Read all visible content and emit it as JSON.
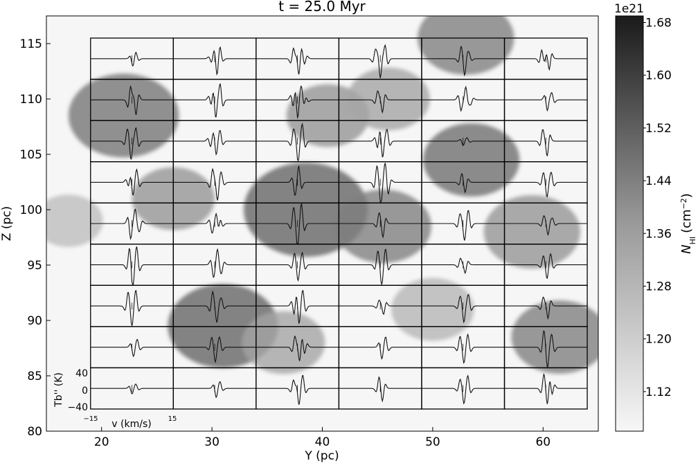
{
  "chart_data": [
    {
      "type": "heatmap",
      "title": "t = 25.0 Myr",
      "xlabel": "Y (pc)",
      "ylabel": "Z (pc)",
      "xlim": [
        15,
        65
      ],
      "ylim": [
        80,
        117.5
      ],
      "xticks": [
        "20",
        "30",
        "40",
        "50",
        "60"
      ],
      "xtick_values": [
        20,
        30,
        40,
        50,
        60
      ],
      "yticks": [
        "80",
        "85",
        "90",
        "95",
        "100",
        "105",
        "110",
        "115"
      ],
      "ytick_values": [
        80,
        85,
        90,
        95,
        100,
        105,
        110,
        115
      ],
      "colormap": "gray_r",
      "colorbar": {
        "label": "N_HI (cm^-2)",
        "label_main": "N",
        "label_sub": "HI",
        "label_units": "(cm",
        "label_exp": "−2",
        "label_close": ")",
        "scale_label": "1e21",
        "ticks": [
          "1.12",
          "1.20",
          "1.28",
          "1.36",
          "1.44",
          "1.52",
          "1.60",
          "1.68"
        ],
        "tick_values": [
          1.12,
          1.2,
          1.28,
          1.36,
          1.44,
          1.52,
          1.6,
          1.68
        ],
        "range": [
          1.06,
          1.69
        ]
      },
      "blobs": [
        {
          "y": 22.0,
          "z": 108.5,
          "r": 4.0,
          "v": 0.75
        },
        {
          "y": 26.5,
          "z": 101.0,
          "r": 3.0,
          "v": 0.55
        },
        {
          "y": 31.0,
          "z": 89.5,
          "r": 4.0,
          "v": 0.85
        },
        {
          "y": 38.5,
          "z": 100.0,
          "r": 4.5,
          "v": 0.85
        },
        {
          "y": 40.5,
          "z": 108.5,
          "r": 3.0,
          "v": 0.55
        },
        {
          "y": 45.5,
          "z": 98.5,
          "r": 3.5,
          "v": 0.7
        },
        {
          "y": 53.5,
          "z": 104.5,
          "r": 3.5,
          "v": 0.8
        },
        {
          "y": 53.0,
          "z": 115.5,
          "r": 3.5,
          "v": 0.7
        },
        {
          "y": 61.5,
          "z": 88.5,
          "r": 3.5,
          "v": 0.7
        },
        {
          "y": 59.0,
          "z": 98.0,
          "r": 3.5,
          "v": 0.55
        },
        {
          "y": 36.5,
          "z": 88.0,
          "r": 3.0,
          "v": 0.45
        },
        {
          "y": 17.0,
          "z": 99.0,
          "r": 2.5,
          "v": 0.3
        },
        {
          "y": 46.0,
          "z": 110.0,
          "r": 3.0,
          "v": 0.45
        },
        {
          "y": 50.0,
          "z": 91.0,
          "r": 3.0,
          "v": 0.35
        }
      ]
    },
    {
      "type": "line",
      "title": "",
      "xlabel": "v (km/s)",
      "ylabel": "Tb'' (K)",
      "xlim": [
        -15,
        15
      ],
      "ylim": [
        -50,
        50
      ],
      "xticks": [
        "−15",
        "15"
      ],
      "yticks": [
        "40",
        "0",
        "−40"
      ],
      "ytick_values": [
        40,
        0,
        -40
      ],
      "grid": {
        "rows": 9,
        "cols": 6
      },
      "panel_extent_y": [
        19,
        64
      ],
      "panel_extent_z": [
        82,
        115.5
      ],
      "panel_rows_z": [
        114,
        110.5,
        106.5,
        102.5,
        99,
        95,
        91,
        87.5,
        83.5
      ],
      "series": [
        {
          "p": [
            [
              0.3,
              15,
              -1
            ],
            [
              1.5,
              10,
              1
            ]
          ]
        },
        {
          "p": [
            [
              0.8,
              35,
              -1
            ],
            [
              2.0,
              15,
              1
            ],
            [
              -1.2,
              10,
              -1
            ]
          ]
        },
        {
          "p": [
            [
              0.5,
              40,
              -1
            ],
            [
              -1.5,
              25,
              1
            ],
            [
              2.5,
              15,
              -1
            ]
          ]
        },
        {
          "p": [
            [
              0.0,
              45,
              -1
            ],
            [
              1.8,
              30,
              1
            ],
            [
              -1.8,
              20,
              1
            ]
          ]
        },
        {
          "p": [
            [
              0.6,
              35,
              -1
            ],
            [
              -0.8,
              20,
              1
            ],
            [
              2.2,
              10,
              1
            ]
          ]
        },
        {
          "p": [
            [
              1.2,
              28,
              -1
            ],
            [
              -1.5,
              22,
              1
            ]
          ]
        },
        {
          "p": [
            [
              -0.5,
              40,
              1
            ],
            [
              1.5,
              30,
              -1
            ],
            [
              0.5,
              15,
              1
            ]
          ]
        },
        {
          "p": [
            [
              0.3,
              45,
              -1
            ],
            [
              2.0,
              35,
              1
            ],
            [
              -1.2,
              20,
              -1
            ]
          ]
        },
        {
          "p": [
            [
              0.0,
              45,
              -1
            ],
            [
              1.5,
              25,
              1
            ],
            [
              -1.5,
              25,
              -1
            ],
            [
              3.0,
              10,
              1
            ]
          ]
        },
        {
          "p": [
            [
              0.8,
              30,
              -1
            ],
            [
              -1.0,
              20,
              1
            ]
          ]
        },
        {
          "p": [
            [
              1.0,
              30,
              1
            ],
            [
              -0.8,
              25,
              -1
            ],
            [
              2.8,
              10,
              -1
            ]
          ]
        },
        {
          "p": [
            [
              0.5,
              25,
              -1
            ],
            [
              2.2,
              15,
              1
            ]
          ]
        },
        {
          "p": [
            [
              -0.3,
              40,
              -1
            ],
            [
              1.5,
              30,
              1
            ],
            [
              -1.8,
              20,
              1
            ]
          ]
        },
        {
          "p": [
            [
              0.5,
              30,
              -1
            ],
            [
              2.0,
              20,
              1
            ],
            [
              -1.5,
              15,
              -1
            ]
          ]
        },
        {
          "p": [
            [
              0.2,
              45,
              -1
            ],
            [
              1.8,
              35,
              1
            ],
            [
              -1.5,
              25,
              1
            ]
          ]
        },
        {
          "p": [
            [
              0.8,
              40,
              -1
            ],
            [
              2.5,
              25,
              1
            ],
            [
              -1.0,
              20,
              -1
            ]
          ]
        },
        {
          "p": [
            [
              0.0,
              10,
              -1
            ],
            [
              1.5,
              6,
              1
            ]
          ]
        },
        {
          "p": [
            [
              0.5,
              35,
              -1
            ],
            [
              -1.2,
              25,
              1
            ]
          ]
        },
        {
          "p": [
            [
              0.3,
              30,
              -1
            ],
            [
              1.8,
              25,
              1
            ],
            [
              -1.2,
              15,
              -1
            ]
          ]
        },
        {
          "p": [
            [
              1.0,
              40,
              -1
            ],
            [
              -0.8,
              30,
              1
            ],
            [
              2.5,
              15,
              1
            ]
          ]
        },
        {
          "p": [
            [
              0.5,
              35,
              1
            ],
            [
              -1.0,
              25,
              -1
            ]
          ]
        },
        {
          "p": [
            [
              0.2,
              45,
              -1
            ],
            [
              1.8,
              35,
              1
            ],
            [
              -1.3,
              30,
              1
            ],
            [
              3.0,
              15,
              -1
            ]
          ]
        },
        {
          "p": [
            [
              0.8,
              20,
              -1
            ],
            [
              -0.5,
              15,
              1
            ]
          ]
        },
        {
          "p": [
            [
              0.4,
              30,
              -1
            ],
            [
              2.0,
              20,
              1
            ],
            [
              -1.0,
              15,
              1
            ]
          ]
        },
        {
          "p": [
            [
              -0.5,
              35,
              -1
            ],
            [
              1.2,
              30,
              1
            ],
            [
              2.8,
              15,
              -1
            ]
          ]
        },
        {
          "p": [
            [
              0.6,
              25,
              1
            ],
            [
              -1.0,
              20,
              -1
            ],
            [
              2.0,
              15,
              1
            ]
          ]
        },
        {
          "p": [
            [
              0.0,
              45,
              -1
            ],
            [
              1.5,
              40,
              1
            ],
            [
              -1.5,
              30,
              1
            ]
          ]
        },
        {
          "p": [
            [
              1.0,
              30,
              -1
            ],
            [
              -0.5,
              20,
              1
            ]
          ]
        },
        {
          "p": [
            [
              0.5,
              35,
              -1
            ],
            [
              2.0,
              25,
              1
            ],
            [
              -1.2,
              20,
              1
            ]
          ]
        },
        {
          "p": [
            [
              0.8,
              25,
              -1
            ],
            [
              -0.8,
              15,
              1
            ],
            [
              2.5,
              10,
              1
            ]
          ]
        },
        {
          "p": [
            [
              0.3,
              45,
              -1
            ],
            [
              1.8,
              35,
              1
            ],
            [
              -1.0,
              25,
              1
            ]
          ]
        },
        {
          "p": [
            [
              1.0,
              30,
              1
            ],
            [
              -0.5,
              25,
              -1
            ],
            [
              2.5,
              15,
              -1
            ]
          ]
        },
        {
          "p": [
            [
              0.2,
              30,
              -1
            ],
            [
              1.8,
              25,
              1
            ],
            [
              -1.2,
              20,
              1
            ]
          ]
        },
        {
          "p": [
            [
              0.5,
              40,
              -1
            ],
            [
              2.0,
              30,
              1
            ],
            [
              -1.0,
              25,
              1
            ]
          ]
        },
        {
          "p": [
            [
              0.8,
              20,
              -1
            ],
            [
              -1.0,
              15,
              1
            ]
          ]
        },
        {
          "p": [
            [
              0.4,
              25,
              -1
            ],
            [
              1.8,
              20,
              1
            ],
            [
              -1.0,
              15,
              1
            ]
          ]
        },
        {
          "p": [
            [
              0.0,
              40,
              -1
            ],
            [
              1.5,
              30,
              1
            ],
            [
              -1.5,
              25,
              1
            ]
          ]
        },
        {
          "p": [
            [
              0.8,
              35,
              -1
            ],
            [
              -0.8,
              30,
              1
            ],
            [
              2.5,
              15,
              1
            ]
          ]
        },
        {
          "p": [
            [
              0.5,
              40,
              -1
            ],
            [
              2.0,
              30,
              1
            ],
            [
              -1.2,
              25,
              -1
            ]
          ]
        },
        {
          "p": [
            [
              1.2,
              20,
              -1
            ],
            [
              -0.5,
              12,
              1
            ]
          ]
        },
        {
          "p": [
            [
              0.3,
              35,
              -1
            ],
            [
              2.0,
              25,
              1
            ],
            [
              -1.2,
              15,
              1
            ]
          ]
        },
        {
          "p": [
            [
              0.8,
              30,
              -1
            ],
            [
              -1.0,
              20,
              1
            ]
          ]
        },
        {
          "p": [
            [
              0.5,
              20,
              -1
            ],
            [
              2.0,
              15,
              1
            ]
          ]
        },
        {
          "p": [
            [
              0.2,
              30,
              -1
            ],
            [
              1.8,
              20,
              1
            ],
            [
              -1.2,
              15,
              1
            ]
          ]
        },
        {
          "p": [
            [
              0.8,
              35,
              -1
            ],
            [
              -1.0,
              25,
              1
            ],
            [
              2.5,
              20,
              -1
            ]
          ]
        },
        {
          "p": [
            [
              0.5,
              25,
              -1
            ],
            [
              2.0,
              20,
              1
            ]
          ]
        },
        {
          "p": [
            [
              0.3,
              30,
              -1
            ],
            [
              1.8,
              25,
              1
            ],
            [
              -1.2,
              20,
              1
            ]
          ]
        },
        {
          "p": [
            [
              0.6,
              40,
              -1
            ],
            [
              -0.8,
              30,
              1
            ],
            [
              2.2,
              25,
              1
            ]
          ]
        },
        {
          "p": [
            [
              0.0,
              12,
              -1
            ],
            [
              1.5,
              8,
              1
            ]
          ]
        },
        {
          "p": [
            [
              0.5,
              20,
              -1
            ],
            [
              2.0,
              12,
              1
            ]
          ]
        },
        {
          "p": [
            [
              0.5,
              35,
              -1
            ],
            [
              2.0,
              25,
              1
            ],
            [
              -1.5,
              20,
              1
            ]
          ]
        },
        {
          "p": [
            [
              0.8,
              25,
              -1
            ],
            [
              -0.5,
              20,
              1
            ]
          ]
        },
        {
          "p": [
            [
              0.3,
              30,
              -1
            ],
            [
              1.8,
              25,
              1
            ],
            [
              -1.2,
              15,
              1
            ]
          ]
        },
        {
          "p": [
            [
              0.6,
              35,
              -1
            ],
            [
              -0.8,
              25,
              1
            ],
            [
              2.2,
              20,
              -1
            ]
          ]
        }
      ]
    }
  ]
}
